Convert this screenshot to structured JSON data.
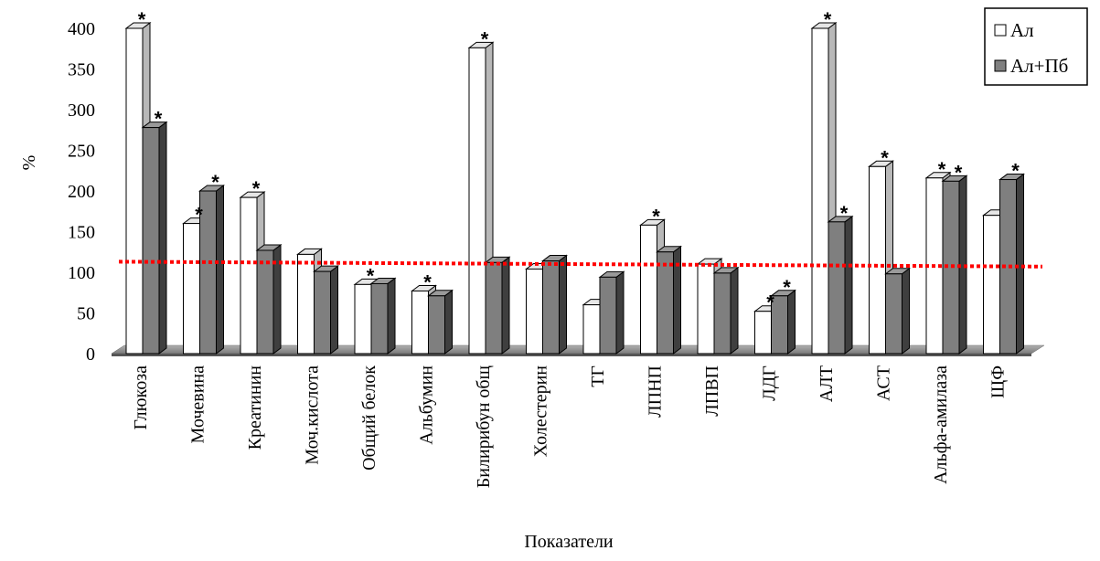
{
  "chart_data": {
    "type": "bar",
    "xlabel": "Показатели",
    "ylabel": "%",
    "ylim": [
      0,
      400
    ],
    "yticks": [
      0,
      50,
      100,
      150,
      200,
      250,
      300,
      350,
      400
    ],
    "yticks_text": [
      "0",
      "50",
      "100",
      "150",
      "200",
      "250",
      "300",
      "350",
      "400"
    ],
    "categories": [
      "Глюкоза",
      "Мочевина",
      "Креатинин",
      "Моч.кислота",
      "Общий белок",
      "Альбумин",
      "Билирибун общ",
      "Холестерин",
      "ТГ",
      "ЛПНП",
      "ЛПВП",
      "ЛДГ",
      "АЛТ",
      "АСТ",
      "Альфа-амилаза",
      "ЩФ"
    ],
    "series": [
      {
        "name": "Ал",
        "color": "#ffffff",
        "values": [
          400,
          160,
          192,
          122,
          85,
          77,
          376,
          104,
          60,
          158,
          110,
          52,
          400,
          230,
          216,
          170
        ],
        "marks": [
          1,
          1,
          1,
          0,
          1,
          1,
          1,
          0,
          0,
          1,
          0,
          1,
          1,
          1,
          1,
          0
        ]
      },
      {
        "name": "Ал+Пб",
        "color": "#808080",
        "values": [
          278,
          200,
          127,
          101,
          86,
          71,
          112,
          114,
          94,
          125,
          99,
          71,
          162,
          98,
          212,
          214
        ],
        "marks": [
          1,
          1,
          0,
          0,
          0,
          0,
          0,
          0,
          0,
          0,
          0,
          1,
          1,
          0,
          1,
          1
        ]
      }
    ],
    "significance_mark": "*",
    "reference_line": {
      "from": 113,
      "to": 107,
      "color": "#ff0000",
      "style": "dotted"
    },
    "grid": false,
    "legend_position": "top-right"
  }
}
